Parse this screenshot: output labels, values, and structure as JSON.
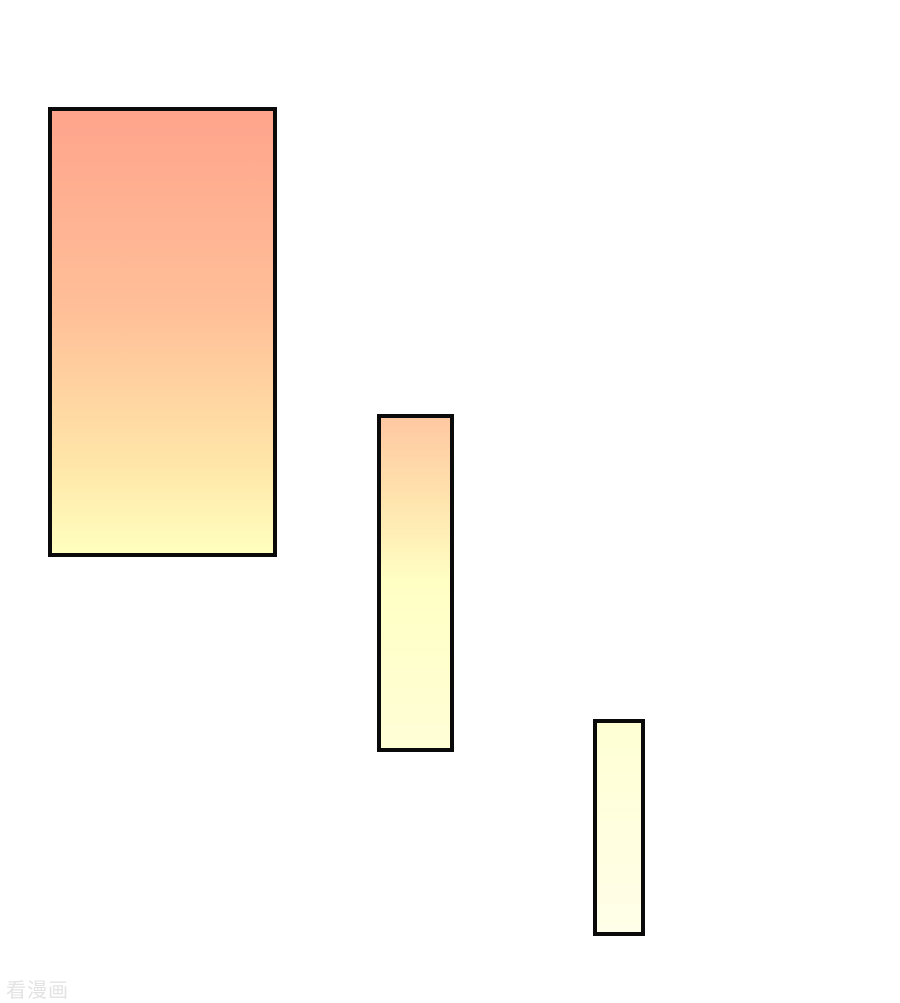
{
  "page": {
    "type": "comic-page",
    "background": "#ffffff",
    "panels": [
      {
        "name": "panel-1",
        "fill_top": "#ffa48c",
        "fill_bottom": "#ffffbe"
      },
      {
        "name": "panel-2",
        "fill_top": "#ffc8a2",
        "fill_bottom": "#fffed6"
      },
      {
        "name": "panel-3",
        "fill_top": "#ffffd4",
        "fill_bottom": "#fffee8"
      }
    ],
    "border_color": "#0a0a0a"
  },
  "watermark": {
    "text": "看漫画",
    "color": "#e3e3e3"
  }
}
